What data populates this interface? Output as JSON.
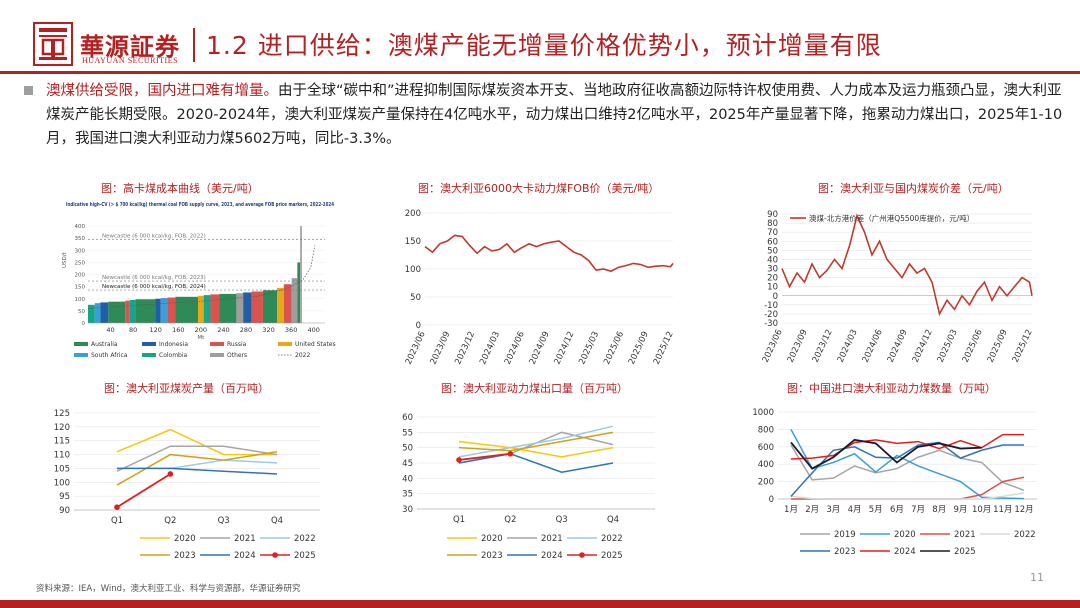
{
  "header": {
    "company_cn": "華源証券",
    "company_en": "HUAYUAN SECURITIES",
    "title": "1.2 进口供给：澳煤产能无增量价格优势小，预计增量有限",
    "brand_color": "#b22222"
  },
  "summary": {
    "highlight": "澳煤供给受限，国内进口难有增量。",
    "body": "由于全球“碳中和”进程抑制国际煤炭资本开支、当地政府征收高额边际特许权使用费、人力成本及运力瓶颈凸显，澳大利亚煤炭产能长期受限。2020-2024年，澳大利亚煤炭产量保持在4亿吨水平，动力煤出口维持2亿吨水平，2025年产量显著下降，拖累动力煤出口，2025年1-10月，我国进口澳大利亚动力煤5602万吨，同比-3.3%。"
  },
  "charts": [
    {
      "title": "图：高卡煤成本曲线（美元/吨）",
      "chart_data": {
        "type": "bar",
        "title": "Indicative high-CV (> $ 700 kcal/kg) thermal coal FOB supply curve, 2023, and average FOB price markers, 2022-2024",
        "ylabel": "USD/t",
        "xlabel": "Mt",
        "ylim": [
          0,
          400
        ],
        "xlim": [
          0,
          420
        ],
        "yticks": [
          "0",
          "50",
          "100",
          "150",
          "200",
          "250",
          "300",
          "350",
          "400"
        ],
        "xticks": [
          "40",
          "80",
          "120",
          "160",
          "200",
          "240",
          "280",
          "320",
          "360",
          "400"
        ],
        "markers": [
          {
            "label": "Newcastle (6 000 kcal/kg, FOB, 2022)",
            "value": 345
          },
          {
            "label": "Newcastle (6 000 kcal/kg, FOB, 2023)",
            "value": 173
          },
          {
            "label": "Newcastle (6 000 kcal/kg, FOB, 2024)",
            "value": 136
          }
        ],
        "series_legend": [
          {
            "name": "Australia",
            "color": "#2e8b57"
          },
          {
            "name": "Indonesia",
            "color": "#1f5fa8"
          },
          {
            "name": "Russia",
            "color": "#d9534f"
          },
          {
            "name": "United States",
            "color": "#e6a817"
          },
          {
            "name": "South Africa",
            "color": "#3a9fd8"
          },
          {
            "name": "Colombia",
            "color": "#17a589"
          },
          {
            "name": "Others",
            "color": "#9e9e9e"
          },
          {
            "name": "2022",
            "color": "#555555"
          }
        ],
        "curve": [
          {
            "country": "Colombia",
            "mt": 12,
            "cost": 75
          },
          {
            "country": "South Africa",
            "mt": 10,
            "cost": 82
          },
          {
            "country": "Indonesia",
            "mt": 14,
            "cost": 85
          },
          {
            "country": "Australia",
            "mt": 30,
            "cost": 88
          },
          {
            "country": "Russia",
            "mt": 8,
            "cost": 92
          },
          {
            "country": "Colombia",
            "mt": 10,
            "cost": 95
          },
          {
            "country": "Australia",
            "mt": 35,
            "cost": 98
          },
          {
            "country": "Indonesia",
            "mt": 10,
            "cost": 100
          },
          {
            "country": "South Africa",
            "mt": 12,
            "cost": 103
          },
          {
            "country": "Russia",
            "mt": 14,
            "cost": 105
          },
          {
            "country": "Australia",
            "mt": 40,
            "cost": 108
          },
          {
            "country": "United States",
            "mt": 10,
            "cost": 112
          },
          {
            "country": "Colombia",
            "mt": 12,
            "cost": 115
          },
          {
            "country": "Russia",
            "mt": 16,
            "cost": 118
          },
          {
            "country": "Australia",
            "mt": 30,
            "cost": 120
          },
          {
            "country": "Others",
            "mt": 12,
            "cost": 123
          },
          {
            "country": "Indonesia",
            "mt": 15,
            "cost": 126
          },
          {
            "country": "Russia",
            "mt": 20,
            "cost": 130
          },
          {
            "country": "Australia",
            "mt": 25,
            "cost": 135
          },
          {
            "country": "United States",
            "mt": 12,
            "cost": 145
          },
          {
            "country": "Russia",
            "mt": 14,
            "cost": 160
          },
          {
            "country": "Others",
            "mt": 10,
            "cost": 185
          },
          {
            "country": "Australia",
            "mt": 5,
            "cost": 250
          },
          {
            "country": "Others",
            "mt": 3,
            "cost": 400
          }
        ],
        "line_2022": [
          {
            "mt": 0,
            "cost": 60
          },
          {
            "mt": 100,
            "cost": 75
          },
          {
            "mt": 200,
            "cost": 90
          },
          {
            "mt": 300,
            "cost": 110
          },
          {
            "mt": 350,
            "cost": 140
          },
          {
            "mt": 380,
            "cost": 175
          },
          {
            "mt": 395,
            "cost": 230
          },
          {
            "mt": 402,
            "cost": 320
          }
        ]
      }
    },
    {
      "title": "图：澳大利亚6000大卡动力煤FOB价（美元/吨）",
      "chart_data": {
        "type": "line",
        "series_name": "澳大利亚6000大卡动力煤FOB价",
        "ylim": [
          0,
          200
        ],
        "yticks": [
          "0",
          "50",
          "100",
          "150",
          "200"
        ],
        "xticks": [
          "2023/06",
          "2023/09",
          "2023/12",
          "2024/03",
          "2024/06",
          "2024/09",
          "2024/12",
          "2025/03",
          "2025/06",
          "2025/09",
          "2025/12"
        ],
        "x": [
          0,
          0.3,
          0.6,
          0.9,
          1.2,
          1.5,
          1.8,
          2.1,
          2.4,
          2.7,
          3.0,
          3.3,
          3.6,
          3.9,
          4.2,
          4.5,
          4.8,
          5.1,
          5.4,
          5.7,
          6.0,
          6.3,
          6.6,
          6.9,
          7.2,
          7.5,
          7.8,
          8.1,
          8.4,
          8.7,
          9.0,
          9.3,
          9.6,
          9.9,
          10.0
        ],
        "values": [
          140,
          130,
          145,
          150,
          160,
          158,
          142,
          128,
          140,
          132,
          135,
          145,
          130,
          138,
          145,
          140,
          145,
          148,
          150,
          140,
          130,
          125,
          115,
          98,
          100,
          96,
          103,
          106,
          110,
          108,
          103,
          105,
          106,
          104,
          110
        ],
        "color": "#c0392b"
      }
    },
    {
      "title": "图：澳大利亚与国内煤炭价差（元/吨）",
      "chart_data": {
        "type": "line",
        "series_name": "澳煤-北方港价差（广州港Q5500库提价，元/吨）",
        "ylim": [
          -30,
          90
        ],
        "yticks": [
          "-30",
          "-20",
          "-10",
          "0",
          "10",
          "20",
          "30",
          "40",
          "50",
          "60",
          "70",
          "80",
          "90"
        ],
        "xticks": [
          "2023/06",
          "2023/09",
          "2023/12",
          "2024/03",
          "2024/06",
          "2024/09",
          "2024/12",
          "2025/03",
          "2025/06",
          "2025/09",
          "2025/12"
        ],
        "x": [
          0,
          0.3,
          0.6,
          0.9,
          1.2,
          1.5,
          1.8,
          2.1,
          2.4,
          2.7,
          3.0,
          3.3,
          3.6,
          3.9,
          4.2,
          4.5,
          4.8,
          5.1,
          5.4,
          5.7,
          6.0,
          6.3,
          6.6,
          6.9,
          7.2,
          7.5,
          7.8,
          8.1,
          8.4,
          8.7,
          9.0,
          9.3,
          9.6,
          9.9,
          10.0
        ],
        "values": [
          30,
          10,
          25,
          15,
          35,
          20,
          28,
          40,
          30,
          55,
          88,
          70,
          45,
          60,
          40,
          30,
          20,
          35,
          25,
          30,
          15,
          -20,
          -5,
          -15,
          0,
          -10,
          5,
          15,
          -5,
          10,
          0,
          10,
          20,
          15,
          0
        ],
        "color": "#c0392b"
      }
    },
    {
      "title": "图：澳大利亚煤炭产量（百万吨）",
      "chart_data": {
        "type": "line",
        "ylim": [
          90,
          125
        ],
        "yticks": [
          "90",
          "95",
          "100",
          "105",
          "110",
          "115",
          "120",
          "125"
        ],
        "categories": [
          "Q1",
          "Q2",
          "Q3",
          "Q4"
        ],
        "series": [
          {
            "name": "2020",
            "color": "#f2c811",
            "values": [
              111,
              119,
              110,
              110
            ]
          },
          {
            "name": "2021",
            "color": "#a6a6a6",
            "values": [
              104,
              113,
              113,
              110
            ]
          },
          {
            "name": "2022",
            "color": "#9ec9e8",
            "values": [
              105,
              105,
              108,
              107
            ]
          },
          {
            "name": "2023",
            "color": "#d4a017",
            "values": [
              99,
              110,
              108,
              111
            ]
          },
          {
            "name": "2024",
            "color": "#2e75b6",
            "values": [
              105,
              105,
              104,
              103
            ]
          },
          {
            "name": "2025",
            "color": "#e02020",
            "values": [
              91,
              103,
              null,
              null
            ]
          }
        ]
      }
    },
    {
      "title": "图：澳大利亚动力煤出口量（百万吨）",
      "chart_data": {
        "type": "line",
        "ylim": [
          30,
          60
        ],
        "yticks": [
          "30",
          "35",
          "40",
          "45",
          "50",
          "55",
          "60"
        ],
        "categories": [
          "Q1",
          "Q2",
          "Q3",
          "Q4"
        ],
        "series": [
          {
            "name": "2020",
            "color": "#f2c811",
            "values": [
              52,
              50,
              47,
              50
            ]
          },
          {
            "name": "2021",
            "color": "#a6a6a6",
            "values": [
              45,
              48,
              55,
              51
            ]
          },
          {
            "name": "2022",
            "color": "#9ec9e8",
            "values": [
              47,
              50,
              53,
              57
            ]
          },
          {
            "name": "2023",
            "color": "#d4a017",
            "values": [
              50,
              49,
              52,
              55
            ]
          },
          {
            "name": "2024",
            "color": "#2e75b6",
            "values": [
              45,
              48,
              42,
              45
            ]
          },
          {
            "name": "2025",
            "color": "#e02020",
            "values": [
              46,
              48,
              null,
              null
            ]
          }
        ]
      }
    },
    {
      "title": "图：中国进口澳大利亚动力煤数量（万吨）",
      "chart_data": {
        "type": "line",
        "ylim": [
          0,
          1000
        ],
        "yticks": [
          "0",
          "200",
          "400",
          "600",
          "800",
          "1000"
        ],
        "categories": [
          "1月",
          "2月",
          "3月",
          "4月",
          "5月",
          "6月",
          "7月",
          "8月",
          "9月",
          "10月",
          "11月",
          "12月"
        ],
        "series": [
          {
            "name": "2019",
            "color": "#a6a6a6",
            "values": [
              620,
              220,
              240,
              380,
              300,
              350,
              480,
              560,
              470,
              420,
              190,
              100
            ]
          },
          {
            "name": "2020",
            "color": "#3a9fd8",
            "values": [
              800,
              350,
              420,
              520,
              310,
              500,
              380,
              290,
              200,
              20,
              10,
              5
            ]
          },
          {
            "name": "2021",
            "color": "#d9534f",
            "values": [
              0,
              0,
              0,
              0,
              0,
              0,
              0,
              0,
              0,
              50,
              200,
              250
            ]
          },
          {
            "name": "2022",
            "color": "#d9d9d9",
            "values": [
              30,
              5,
              0,
              0,
              0,
              0,
              0,
              0,
              0,
              0,
              30,
              70
            ]
          },
          {
            "name": "2023",
            "color": "#2e75b6",
            "values": [
              30,
              300,
              560,
              600,
              480,
              470,
              620,
              650,
              470,
              560,
              620,
              620
            ]
          },
          {
            "name": "2024",
            "color": "#e02020",
            "values": [
              460,
              470,
              500,
              650,
              680,
              640,
              660,
              580,
              670,
              590,
              740,
              740
            ]
          },
          {
            "name": "2025",
            "color": "#1a1a2e",
            "values": [
              650,
              350,
              480,
              680,
              640,
              420,
              600,
              640,
              580,
              590,
              null,
              null
            ]
          }
        ]
      }
    }
  ],
  "footer": {
    "source": "资料来源：IEA，Wind，澳大利亚工业、科学与资源部，华源证券研究",
    "page_number": "11"
  }
}
